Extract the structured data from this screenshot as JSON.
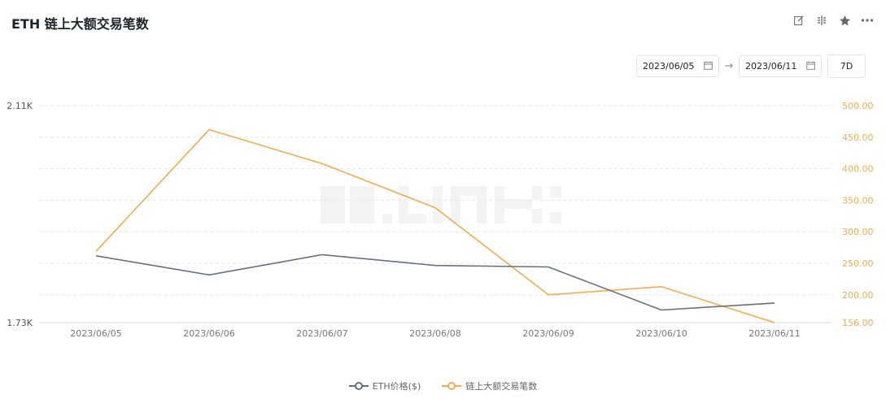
{
  "header": {
    "title": "ETH 链上大额交易笔数",
    "tools": {
      "edit": "edit-icon",
      "compare": "compare-icon",
      "favorite": "star-icon",
      "more": "more-icon"
    }
  },
  "date_range": {
    "start": "2023/06/05",
    "end": "2023/06/11",
    "preset": "7D",
    "calendar_icon": "calendar-icon",
    "arrow_icon": "arrow-right-icon"
  },
  "colors": {
    "price": "#6b6e7c",
    "count": "#f2ac50",
    "grid": "#e6e6e6",
    "left_axis_text": "#555555",
    "right_axis_text": "#f2ac50"
  },
  "chart_data": {
    "type": "line",
    "categories": [
      "2023/06/05",
      "2023/06/06",
      "2023/06/07",
      "2023/06/08",
      "2023/06/09",
      "2023/06/10",
      "2023/06/11"
    ],
    "series": [
      {
        "name": "ETH价格($)",
        "axis": "left",
        "values": [
          1.847,
          1.8135,
          1.849,
          1.83,
          1.8275,
          1.752,
          1.7643
        ]
      },
      {
        "name": "链上大额交易笔数",
        "axis": "right",
        "values": [
          269,
          462,
          408,
          338,
          200,
          213,
          156
        ]
      }
    ],
    "left_axis": {
      "ticks": [
        "2.11K",
        "1.73K"
      ],
      "range": [
        1.73,
        2.11
      ]
    },
    "right_axis": {
      "ticks": [
        "500.00",
        "450.00",
        "400.00",
        "350.00",
        "300.00",
        "250.00",
        "200.00",
        "156.00"
      ],
      "range": [
        156,
        500
      ]
    },
    "grid": true,
    "legend_position": "bottom"
  }
}
